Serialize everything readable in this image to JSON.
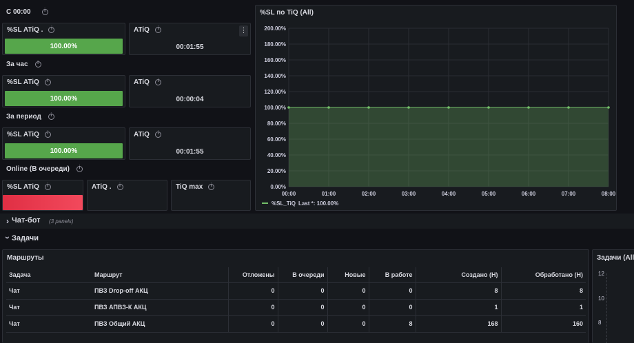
{
  "rows": {
    "since_midnight": "С 00:00",
    "last_hour": "За час",
    "period": "За период",
    "online": "Online (В очереди)"
  },
  "stats": {
    "s1": {
      "sl_title": "%SL ATiQ .",
      "sl_value": "100.00%",
      "atiq_title": "ATiQ",
      "atiq_value": "00:01:55"
    },
    "s2": {
      "sl_title": "%SL ATiQ",
      "sl_value": "100.00%",
      "atiq_title": "ATiQ",
      "atiq_value": "00:00:04"
    },
    "s3": {
      "sl_title": "%SL ATiQ",
      "sl_value": "100.00%",
      "atiq_title": "ATiQ",
      "atiq_value": "00:01:55"
    },
    "s4": {
      "sl_title": "%SL ATiQ",
      "atiq_title": "ATiQ .",
      "tiq_max_title": "TiQ max"
    }
  },
  "menu_glyph": "⋮",
  "collapsed_row": {
    "chevron": "›",
    "title": "Чат-бот",
    "note": "(3 panels)"
  },
  "expanded_row": {
    "chevron": "›",
    "title": "Задачи"
  },
  "chart_data": {
    "type": "area",
    "title": "%SL по TiQ (All)",
    "x": [
      "00:00",
      "01:00",
      "02:00",
      "03:00",
      "04:00",
      "05:00",
      "06:00",
      "07:00",
      "08:00"
    ],
    "yticks": [
      "0.00%",
      "20.00%",
      "40.00%",
      "60.00%",
      "80.00%",
      "100.00%",
      "120.00%",
      "140.00%",
      "160.00%",
      "180.00%",
      "200.00%"
    ],
    "ylim": [
      0,
      200
    ],
    "series": [
      {
        "name": "%SL_TiQ",
        "values": [
          100,
          100,
          100,
          100,
          100,
          100,
          100,
          100,
          100
        ],
        "color": "#73bf69"
      }
    ],
    "legend_text": "Last *: 100.00%",
    "grid": true,
    "legend": "bottom-left"
  },
  "routes_table": {
    "title": "Маршруты",
    "columns": [
      "Задача",
      "Маршрут",
      "Отложены",
      "В очереди",
      "Новые",
      "В работе",
      "Создано (Н)",
      "Обработано (Н)"
    ],
    "rows": [
      [
        "Чат",
        "ПВЗ Drop-off АКЦ",
        "0",
        "0",
        "0",
        "0",
        "8",
        "8"
      ],
      [
        "Чат",
        "ПВЗ АПВЗ-К АКЦ",
        "0",
        "0",
        "0",
        "0",
        "1",
        "1"
      ],
      [
        "Чат",
        "ПВЗ Общий АКЦ",
        "0",
        "0",
        "0",
        "8",
        "168",
        "160"
      ]
    ]
  },
  "tasks_panel": {
    "title": "Задачи (All)",
    "yticks": [
      "12",
      "10",
      "8"
    ]
  },
  "colors": {
    "ok": "#56a64b",
    "bad": "#e02f44",
    "bg": "#111217",
    "panel": "#181b1f"
  }
}
